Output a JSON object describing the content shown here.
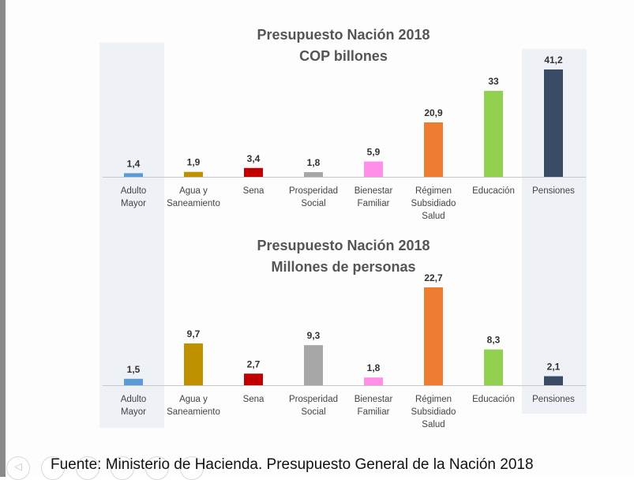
{
  "colors": {
    "highlight_band": "#eef1f5",
    "axis": "#c7c7c7",
    "title_text": "#555555",
    "label_text": "#444444",
    "value_text": "#333333",
    "accent_orange": "#ee7d31",
    "left_bar": "#8a8a8a"
  },
  "highlighted_categories": [
    "Adulto Mayor",
    "Pensiones"
  ],
  "chart_data": [
    {
      "type": "bar",
      "title": "Presupuesto Nación 2018",
      "subtitle": "COP billones",
      "categories": [
        [
          "Adulto",
          "Mayor"
        ],
        [
          "Agua y",
          "Saneamiento"
        ],
        [
          "Sena"
        ],
        [
          "Prosperidad",
          "Social"
        ],
        [
          "Bienestar",
          "Familiar"
        ],
        [
          "Régimen",
          "Subsidiado",
          "Salud"
        ],
        [
          "Educación"
        ],
        [
          "Pensiones"
        ]
      ],
      "values": [
        1.4,
        1.9,
        3.4,
        1.8,
        5.9,
        20.9,
        33,
        41.2
      ],
      "value_labels": [
        "1,4",
        "1,9",
        "3,4",
        "1,8",
        "5,9",
        "20,9",
        "33",
        "41,2"
      ],
      "colors": [
        "#5b9bd5",
        "#bf9000",
        "#c00000",
        "#a6a6a6",
        "#ff8fe8",
        "#ee7d31",
        "#92d050",
        "#3a4b66"
      ],
      "ylim": [
        0,
        41.2
      ],
      "grid": false,
      "legend": "none"
    },
    {
      "type": "bar",
      "title": "Presupuesto Nación 2018",
      "subtitle": "Millones de personas",
      "categories": [
        [
          "Adulto",
          "Mayor"
        ],
        [
          "Agua y",
          "Saneamiento"
        ],
        [
          "Sena"
        ],
        [
          "Prosperidad",
          "Social"
        ],
        [
          "Bienestar",
          "Familiar"
        ],
        [
          "Régimen",
          "Subsidiado",
          "Salud"
        ],
        [
          "Educación"
        ],
        [
          "Pensiones"
        ]
      ],
      "values": [
        1.5,
        9.7,
        2.7,
        9.3,
        1.8,
        22.7,
        8.3,
        2.1
      ],
      "value_labels": [
        "1,5",
        "9,7",
        "2,7",
        "9,3",
        "1,8",
        "22,7",
        "8,3",
        "2,1"
      ],
      "colors": [
        "#5b9bd5",
        "#bf9000",
        "#c00000",
        "#a6a6a6",
        "#ff8fe8",
        "#ee7d31",
        "#92d050",
        "#3a4b66"
      ],
      "ylim": [
        0,
        22.7
      ],
      "grid": false,
      "legend": "none"
    }
  ],
  "footer": {
    "source_text": "Fuente: Ministerio de Hacienda. Presupuesto General de la Nación 2018"
  },
  "nav": {
    "prev_glyph": "◁"
  }
}
